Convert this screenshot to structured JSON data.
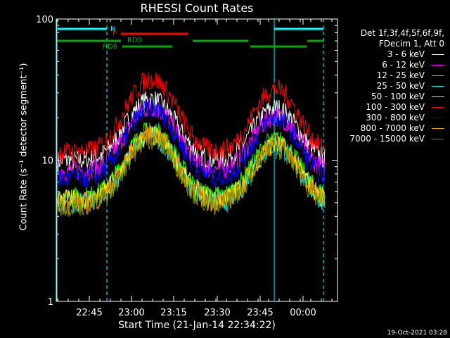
{
  "chart_data": {
    "type": "line",
    "title": "RHESSI Count Rates",
    "xlabel": "Start Time (21-Jan-14 22:34:22)",
    "ylabel": "Count Rate (s⁻¹ detector segment⁻¹)",
    "yscale": "log",
    "ylim": [
      1,
      100
    ],
    "yticks": [
      "1",
      "10",
      "100"
    ],
    "xticks": [
      "22:45",
      "23:00",
      "23:15",
      "23:30",
      "23:45",
      "00:00"
    ],
    "legend_header": [
      "Det 1f,3f,4f,5f,6f,9f,",
      "FDecim 1, Att 0"
    ],
    "series": [
      {
        "name": "3 - 6 keV",
        "color": "#ffffff",
        "level": 10.0,
        "amp": 1.0
      },
      {
        "name": "6 - 12 keV",
        "color": "#ff00ff",
        "level": 8.5,
        "amp": 1.05
      },
      {
        "name": "12 - 25 keV",
        "color": "#00ff00",
        "level": 5.5,
        "amp": 1.1
      },
      {
        "name": "25 - 50 keV",
        "color": "#00ffff",
        "level": 5.0,
        "amp": 1.1
      },
      {
        "name": "50 - 100 keV",
        "color": "#ffff00",
        "level": 5.3,
        "amp": 1.05
      },
      {
        "name": "100 - 300 keV",
        "color": "#ff0000",
        "level": 11.5,
        "amp": 1.2
      },
      {
        "name": "300 - 800 keV",
        "color": "#0000ff",
        "level": 7.5,
        "amp": 1.15
      },
      {
        "name": "800 - 7000 keV",
        "color": "#ff9900",
        "level": 5.0,
        "amp": 1.15
      },
      {
        "name": "7000 - 15000 keV",
        "color": "#888800",
        "level": 4.8,
        "amp": 1.1
      }
    ],
    "flags": [
      {
        "label": "N",
        "color": "#00ffff"
      },
      {
        "label": "F",
        "color": "#ff0000"
      },
      {
        "label": "RD0",
        "color": "#00aa00"
      },
      {
        "label": "RD6",
        "color": "#00aa00"
      }
    ],
    "grid": false
  },
  "footer": "19-Oct-2021 03:28"
}
